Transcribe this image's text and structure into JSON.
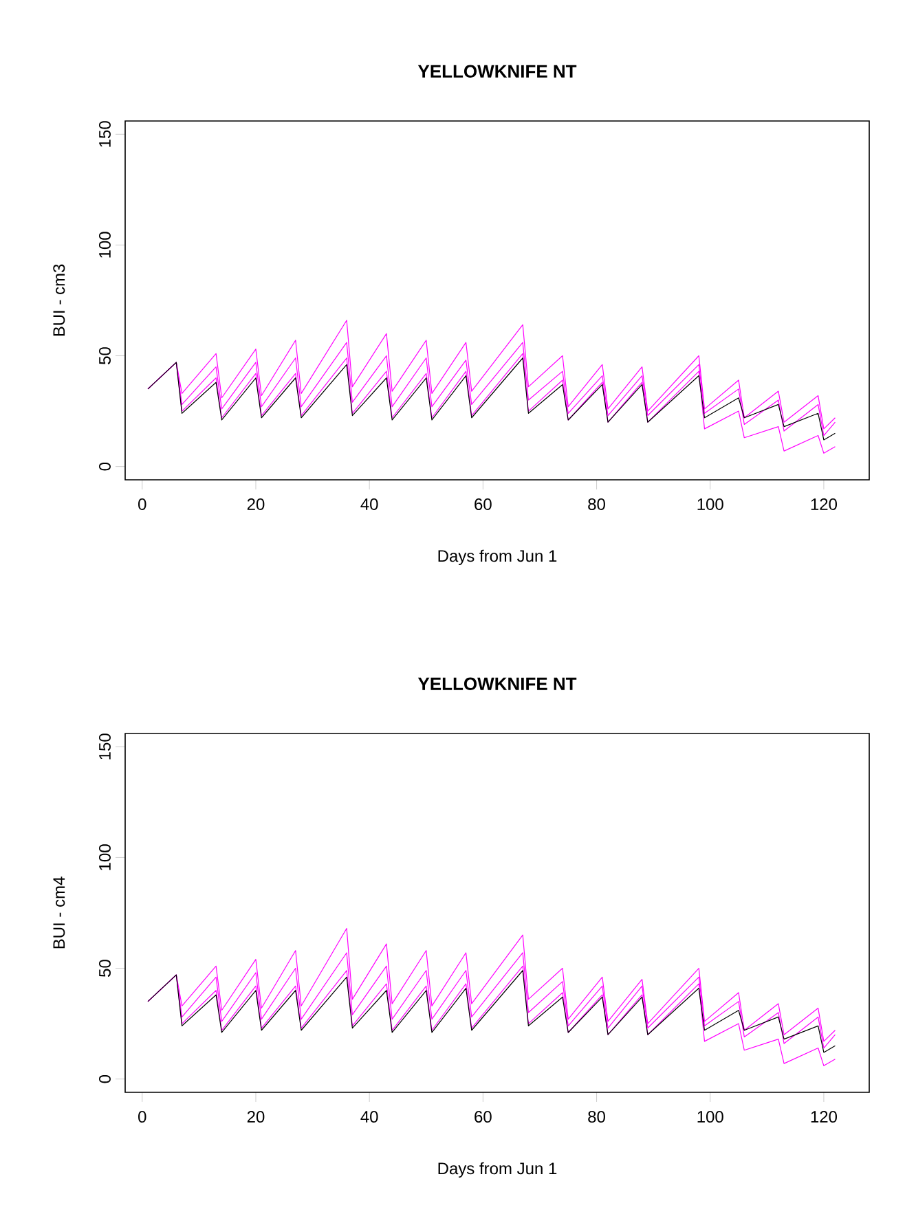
{
  "chart_data": [
    {
      "type": "line",
      "title": "YELLOWKNIFE  NT",
      "xlabel": "Days from Jun 1",
      "ylabel": "BUI - cm3",
      "x": [
        1,
        6,
        7,
        13,
        14,
        20,
        21,
        27,
        28,
        36,
        37,
        43,
        44,
        50,
        51,
        57,
        58,
        67,
        68,
        74,
        75,
        81,
        82,
        88,
        89,
        98,
        99,
        105,
        106,
        112,
        113,
        119,
        120,
        122
      ],
      "series": [
        {
          "color": "#ff00ff",
          "values": [
            35,
            47,
            33,
            51,
            31,
            53,
            32,
            57,
            33,
            66,
            36,
            60,
            34,
            57,
            33,
            56,
            34,
            64,
            36,
            50,
            27,
            46,
            26,
            45,
            25,
            50,
            26,
            39,
            22,
            34,
            20,
            32,
            17,
            22
          ]
        },
        {
          "color": "#ff00ff",
          "values": [
            35,
            47,
            28,
            45,
            26,
            47,
            27,
            49,
            27,
            56,
            29,
            50,
            27,
            49,
            27,
            48,
            28,
            56,
            30,
            43,
            24,
            41,
            23,
            41,
            23,
            46,
            24,
            35,
            19,
            30,
            16,
            28,
            14,
            20
          ]
        },
        {
          "color": "#ff00ff",
          "values": [
            35,
            47,
            25,
            40,
            22,
            42,
            23,
            42,
            23,
            49,
            24,
            43,
            22,
            42,
            22,
            43,
            23,
            51,
            25,
            39,
            21,
            38,
            20,
            38,
            20,
            43,
            17,
            25,
            13,
            18,
            7,
            14,
            6,
            9
          ]
        },
        {
          "color": "#000000",
          "values": [
            35,
            47,
            24,
            38,
            21,
            40,
            22,
            40,
            22,
            46,
            23,
            40,
            21,
            40,
            21,
            41,
            22,
            49,
            24,
            37,
            21,
            37,
            20,
            37,
            20,
            41,
            22,
            31,
            22,
            28,
            18,
            24,
            12,
            15
          ]
        }
      ],
      "xlim": [
        -3,
        128
      ],
      "ylim": [
        -6,
        156
      ],
      "xticks": [
        0,
        20,
        40,
        60,
        80,
        100,
        120
      ],
      "yticks": [
        0,
        50,
        100,
        150
      ]
    },
    {
      "type": "line",
      "title": "YELLOWKNIFE  NT",
      "xlabel": "Days from Jun 1",
      "ylabel": "BUI - cm4",
      "x": [
        1,
        6,
        7,
        13,
        14,
        20,
        21,
        27,
        28,
        36,
        37,
        43,
        44,
        50,
        51,
        57,
        58,
        67,
        68,
        74,
        75,
        81,
        82,
        88,
        89,
        98,
        99,
        105,
        106,
        112,
        113,
        119,
        120,
        122
      ],
      "series": [
        {
          "color": "#ff00ff",
          "values": [
            35,
            47,
            33,
            51,
            31,
            54,
            32,
            58,
            33,
            68,
            36,
            61,
            34,
            58,
            33,
            57,
            34,
            65,
            36,
            50,
            27,
            46,
            26,
            45,
            25,
            50,
            26,
            39,
            22,
            34,
            20,
            32,
            17,
            22
          ]
        },
        {
          "color": "#ff00ff",
          "values": [
            35,
            47,
            28,
            46,
            26,
            48,
            27,
            50,
            27,
            57,
            29,
            51,
            27,
            49,
            27,
            49,
            28,
            57,
            30,
            44,
            24,
            42,
            23,
            42,
            23,
            46,
            24,
            35,
            19,
            30,
            16,
            28,
            14,
            20
          ]
        },
        {
          "color": "#ff00ff",
          "values": [
            35,
            47,
            25,
            40,
            22,
            42,
            23,
            42,
            23,
            49,
            24,
            43,
            22,
            42,
            22,
            43,
            23,
            51,
            25,
            39,
            21,
            38,
            20,
            38,
            20,
            43,
            17,
            25,
            13,
            18,
            7,
            14,
            6,
            9
          ]
        },
        {
          "color": "#000000",
          "values": [
            35,
            47,
            24,
            38,
            21,
            40,
            22,
            40,
            22,
            46,
            23,
            40,
            21,
            40,
            21,
            41,
            22,
            49,
            24,
            37,
            21,
            37,
            20,
            37,
            20,
            41,
            22,
            31,
            22,
            28,
            18,
            24,
            12,
            15
          ]
        }
      ],
      "xlim": [
        -3,
        128
      ],
      "ylim": [
        -6,
        156
      ],
      "xticks": [
        0,
        20,
        40,
        60,
        80,
        100,
        120
      ],
      "yticks": [
        0,
        50,
        100,
        150
      ]
    }
  ]
}
